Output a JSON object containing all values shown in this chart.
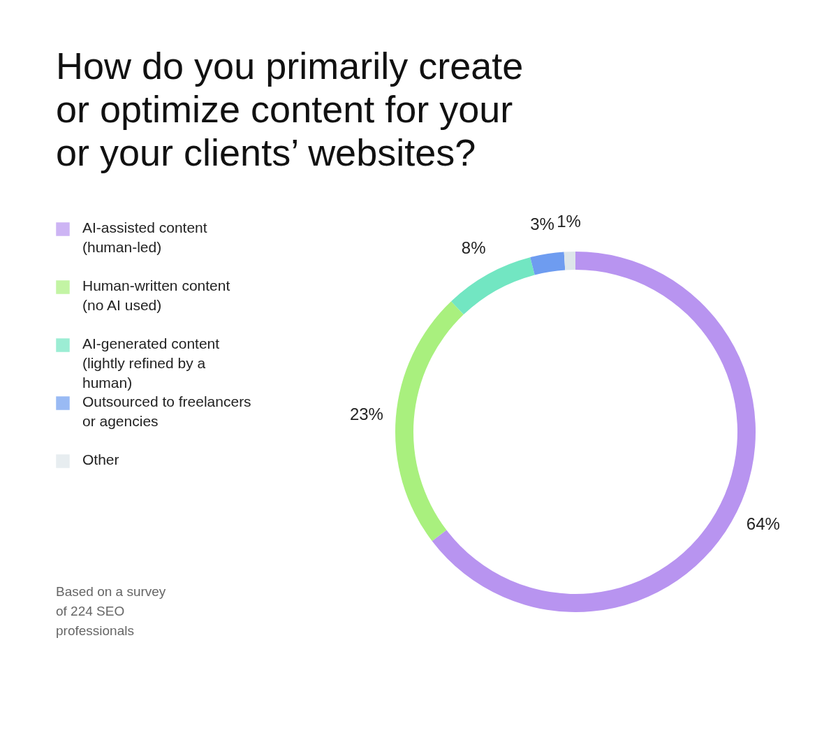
{
  "chart_data": {
    "type": "donut",
    "title": "How do you primarily create or optimize content for your or your clients’ websites?",
    "categories": [
      "AI-assisted content (human-led)",
      "Human-written content (no AI used)",
      "AI-generated content (lightly refined by a human)",
      "Outsourced to freelancers or agencies",
      "Other"
    ],
    "values": [
      64,
      23,
      8,
      3,
      1
    ],
    "value_labels": [
      "64%",
      "23%",
      "8%",
      "3%",
      "1%"
    ],
    "colors": [
      "#b894f0",
      "#a9f07e",
      "#72e6c2",
      "#6e9cf0",
      "#dde6ea"
    ],
    "legend": "left",
    "annotations": [
      "Based on a survey of 224 SEO professionals"
    ]
  }
}
